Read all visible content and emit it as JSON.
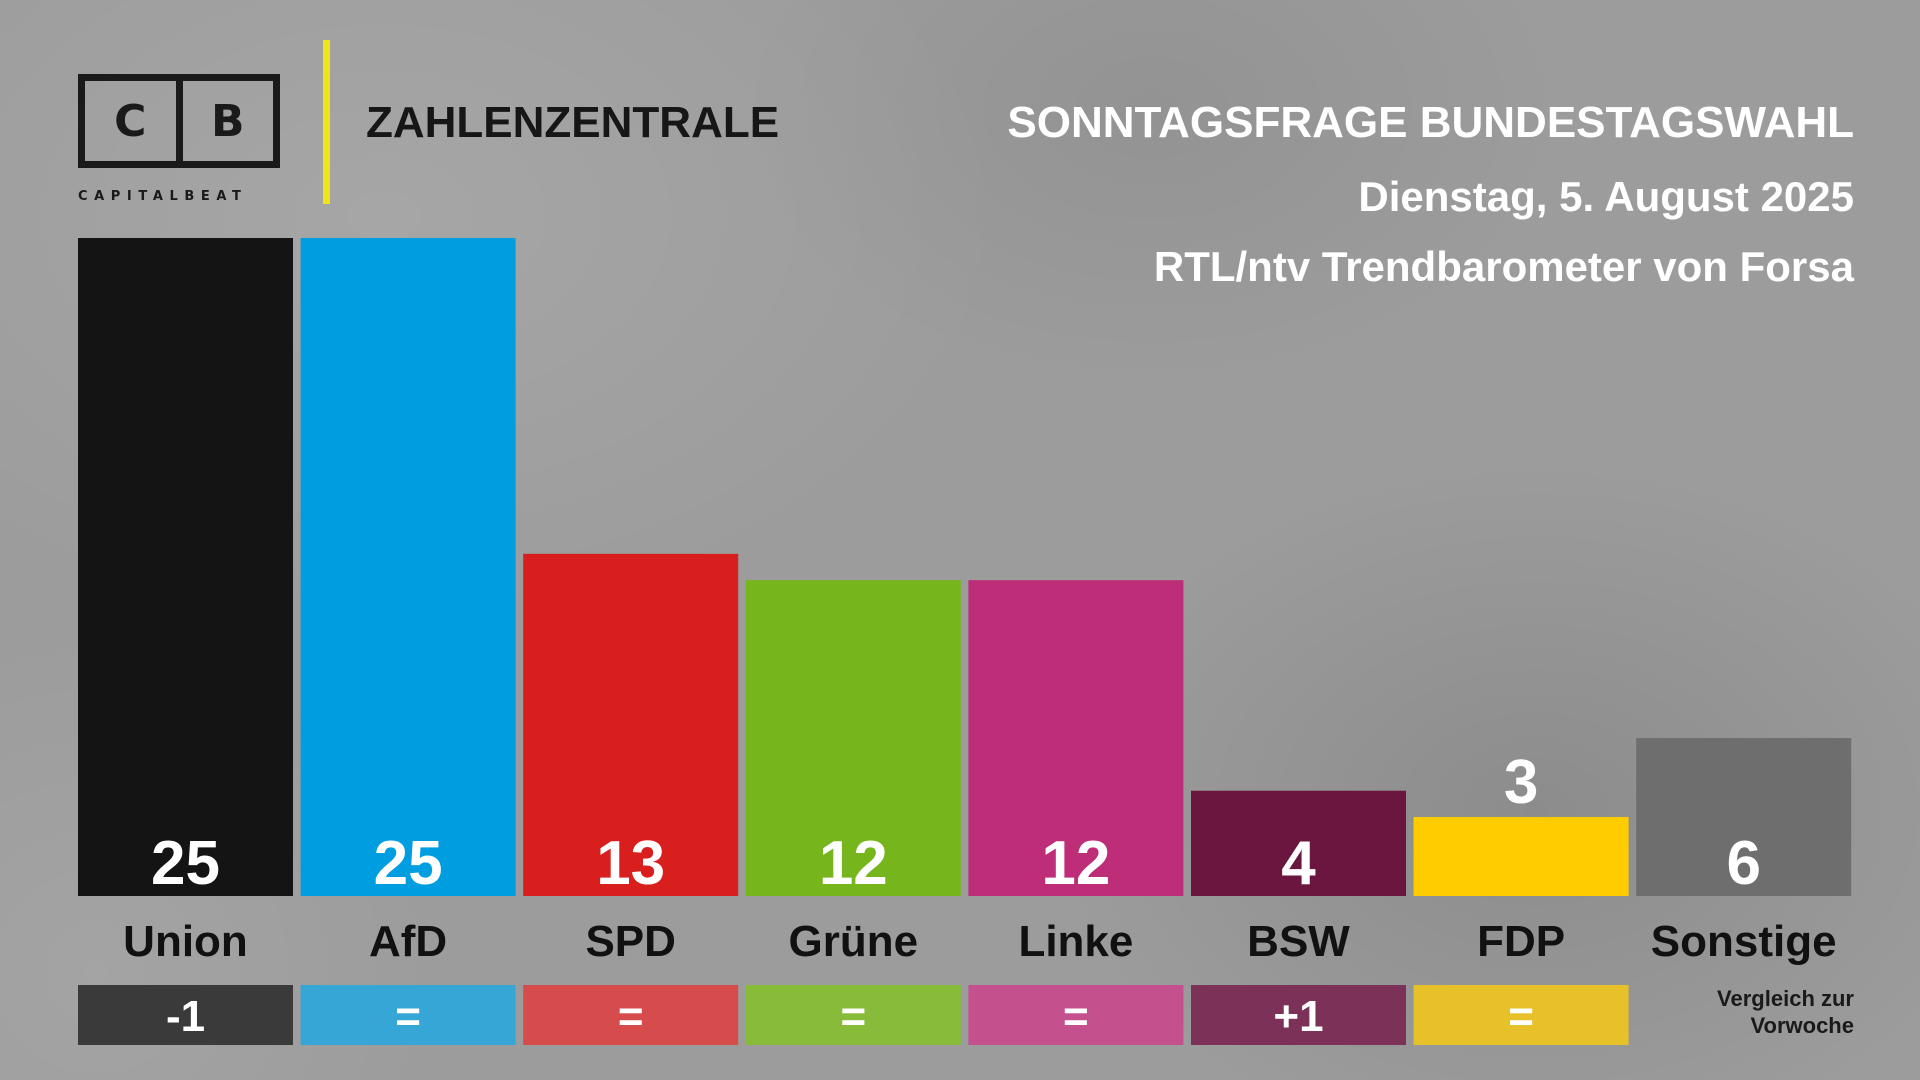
{
  "header": {
    "logo_letter_left": "C",
    "logo_letter_right": "B",
    "logo_wordmark": "CAPITALBEAT",
    "brand": "ZAHLENZENTRALE",
    "title": "SONNTAGSFRAGE BUNDESTAGSWAHL",
    "subtitle": "Dienstag, 5. August 2025",
    "source": "RTL/ntv Trendbarometer von Forsa"
  },
  "comparison_note": [
    "Vergleich zur",
    "Vorwoche"
  ],
  "colors": {
    "accent_yellow": "#f2e21a",
    "value_text": "#ffffff",
    "category_text": "#111111"
  },
  "chart_data": {
    "type": "bar",
    "title": "SONNTAGSFRAGE BUNDESTAGSWAHL",
    "xlabel": "",
    "ylabel": "",
    "ylim": [
      0,
      25
    ],
    "grid": false,
    "categories": [
      "Union",
      "AfD",
      "SPD",
      "Grüne",
      "Linke",
      "BSW",
      "FDP",
      "Sonstige"
    ],
    "values": [
      25,
      25,
      13,
      12,
      12,
      4,
      3,
      6
    ],
    "changes": [
      "-1",
      "=",
      "=",
      "=",
      "=",
      "+1",
      "=",
      ""
    ],
    "colors": [
      "#141414",
      "#009ee0",
      "#d91e1e",
      "#76b51b",
      "#be2d77",
      "#6a163f",
      "#ffcc00",
      "#6e6e6e"
    ],
    "change_colors": [
      "#3a3a3a",
      "#35a6d6",
      "#d64b4b",
      "#88bb3a",
      "#c5508e",
      "#7c3258",
      "#e6c12a",
      ""
    ]
  }
}
